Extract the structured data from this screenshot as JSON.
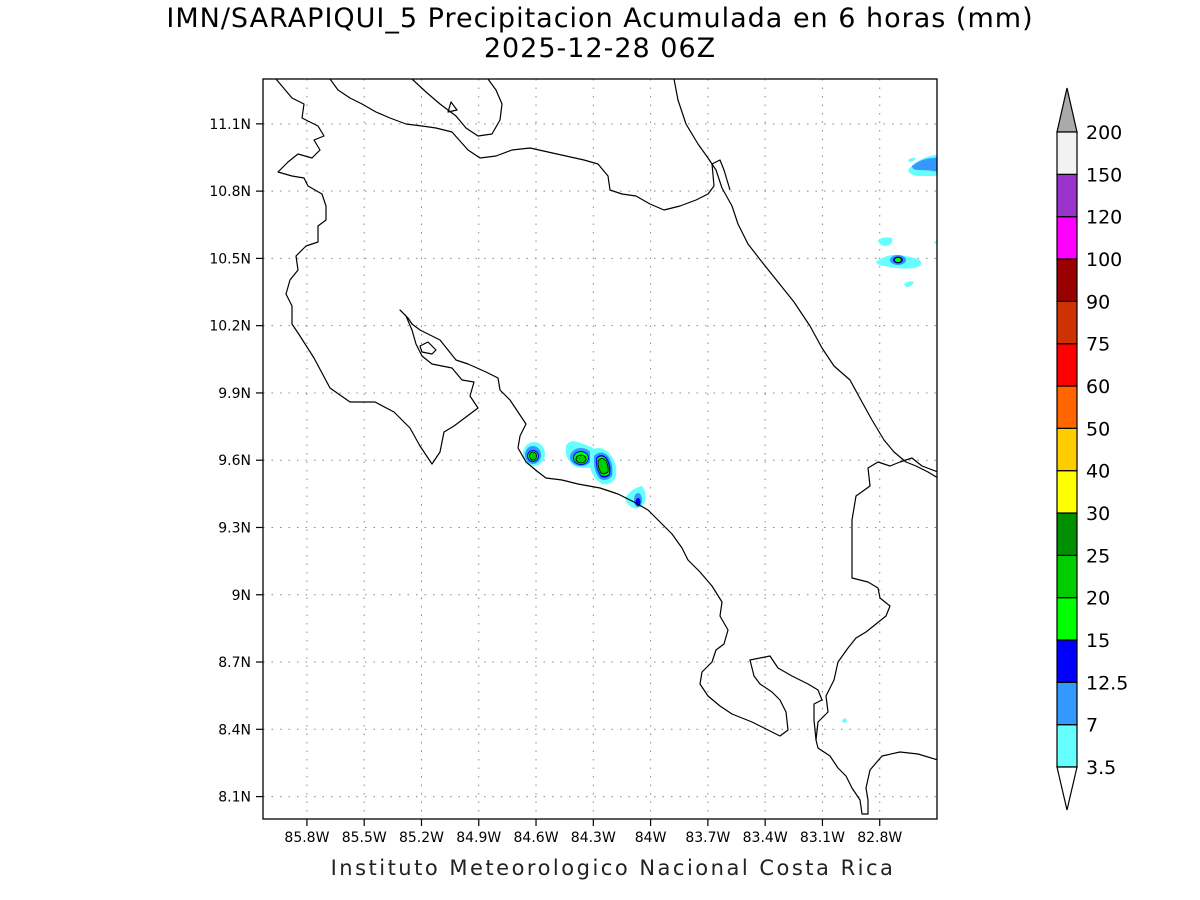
{
  "title": "IMN/SARAPIQUI_5 Precipitacion Acumulada en 6 horas (mm)",
  "subtitle": "2025-12-28 06Z",
  "footer": "Instituto Meteorologico Nacional Costa Rica",
  "map": {
    "lon_range": [
      -86.03,
      -82.5
    ],
    "lat_range": [
      8.0,
      11.3
    ],
    "lon_ticks": [
      {
        "value": -85.8,
        "label": "85.8W"
      },
      {
        "value": -85.5,
        "label": "85.5W"
      },
      {
        "value": -85.2,
        "label": "85.2W"
      },
      {
        "value": -84.9,
        "label": "84.9W"
      },
      {
        "value": -84.6,
        "label": "84.6W"
      },
      {
        "value": -84.3,
        "label": "84.3W"
      },
      {
        "value": -84.0,
        "label": "84W"
      },
      {
        "value": -83.7,
        "label": "83.7W"
      },
      {
        "value": -83.4,
        "label": "83.4W"
      },
      {
        "value": -83.1,
        "label": "83.1W"
      },
      {
        "value": -82.8,
        "label": "82.8W"
      }
    ],
    "lat_ticks": [
      {
        "value": 8.1,
        "label": "8.1N"
      },
      {
        "value": 8.4,
        "label": "8.4N"
      },
      {
        "value": 8.7,
        "label": "8.7N"
      },
      {
        "value": 9.0,
        "label": "9N"
      },
      {
        "value": 9.3,
        "label": "9.3N"
      },
      {
        "value": 9.6,
        "label": "9.6N"
      },
      {
        "value": 9.9,
        "label": "9.9N"
      },
      {
        "value": 10.2,
        "label": "10.2N"
      },
      {
        "value": 10.5,
        "label": "10.5N"
      },
      {
        "value": 10.8,
        "label": "10.8N"
      },
      {
        "value": 11.1,
        "label": "11.1N"
      }
    ],
    "grid": true
  },
  "colorbar": {
    "levels": [
      {
        "label": "3.5",
        "color": "#66ffff"
      },
      {
        "label": "7",
        "color": "#3399ff"
      },
      {
        "label": "12.5",
        "color": "#0000ff"
      },
      {
        "label": "15",
        "color": "#00ff00"
      },
      {
        "label": "20",
        "color": "#00cc00"
      },
      {
        "label": "25",
        "color": "#008f00"
      },
      {
        "label": "30",
        "color": "#ffff00"
      },
      {
        "label": "40",
        "color": "#ffcc00"
      },
      {
        "label": "50",
        "color": "#ff6600"
      },
      {
        "label": "60",
        "color": "#ff0000"
      },
      {
        "label": "75",
        "color": "#cc3300"
      },
      {
        "label": "90",
        "color": "#990000"
      },
      {
        "label": "100",
        "color": "#ff00ff"
      },
      {
        "label": "120",
        "color": "#9933cc"
      },
      {
        "label": "150",
        "color": "#f2f2f2"
      },
      {
        "label": "200",
        "color": "#aaaaaa"
      }
    ],
    "bins": [
      "#66ffff",
      "#3399ff",
      "#0000ff",
      "#00ff00",
      "#00cc00",
      "#008f00",
      "#ffff00",
      "#ffcc00",
      "#ff6600",
      "#ff0000",
      "#cc3300",
      "#990000",
      "#ff00ff",
      "#9933cc",
      "#f2f2f2"
    ],
    "over_color": "#aaaaaa",
    "under_color": "#ffffff"
  },
  "precip_cells": [
    {
      "lon": -84.6,
      "lat": 9.62,
      "max_mm": 20
    },
    {
      "lon": -84.37,
      "lat": 9.61,
      "max_mm": 20
    },
    {
      "lon": -84.22,
      "lat": 9.57,
      "max_mm": 20
    },
    {
      "lon": -84.04,
      "lat": 9.43,
      "max_mm": 12.5
    },
    {
      "lon": -82.72,
      "lat": 10.49,
      "max_mm": 15
    },
    {
      "lon": -82.55,
      "lat": 10.93,
      "max_mm": 7
    }
  ]
}
